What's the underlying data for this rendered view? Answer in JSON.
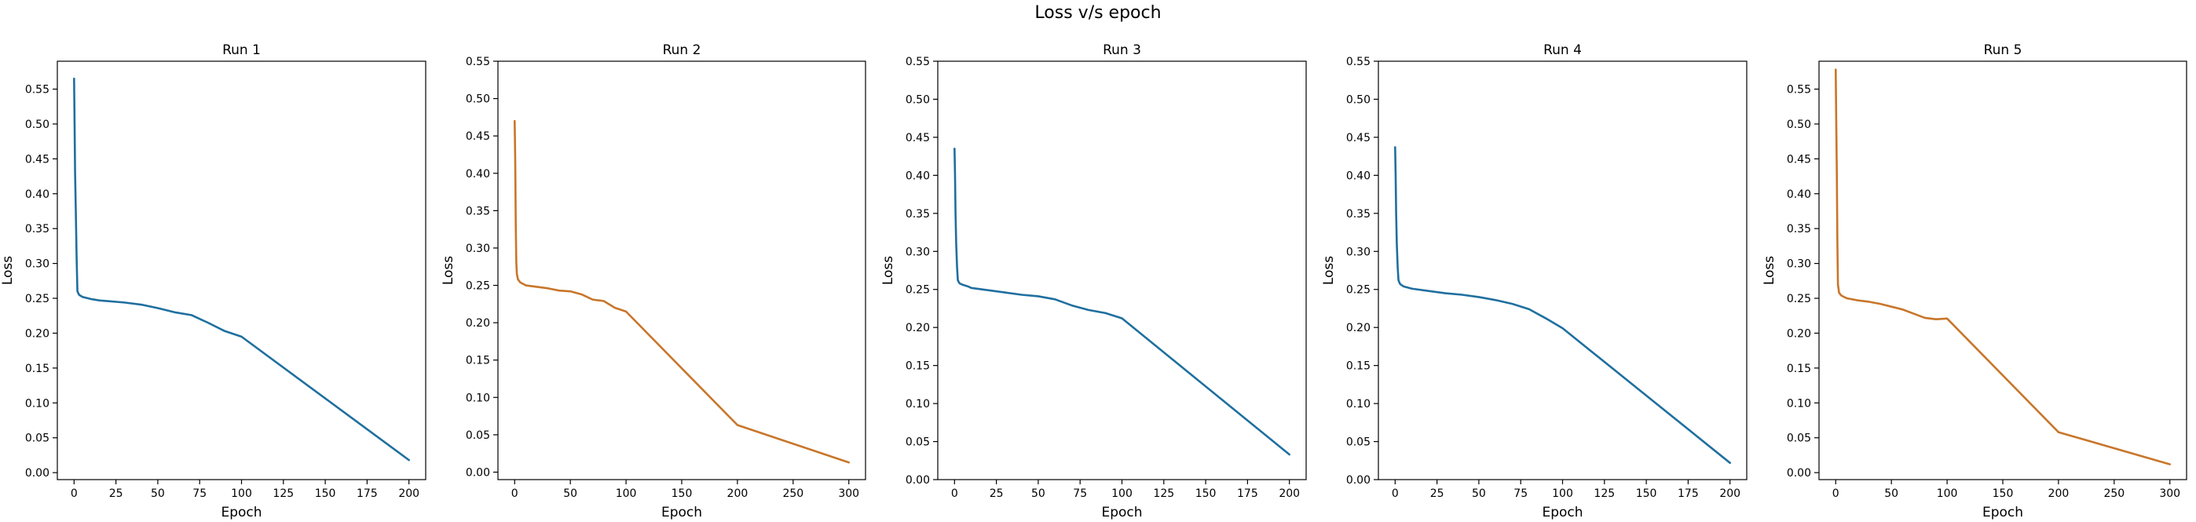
{
  "figure": {
    "title": "Loss v/s epoch"
  },
  "colors": {
    "blue": "#1f6f9f",
    "orange": "#c8762a"
  },
  "chart_data": [
    {
      "type": "line",
      "title": "Run 1",
      "xlabel": "Epoch",
      "ylabel": "Loss",
      "xlim": [
        -10,
        210
      ],
      "ylim": [
        -0.01,
        0.59
      ],
      "xticks": [
        0,
        25,
        50,
        75,
        100,
        125,
        150,
        175,
        200
      ],
      "yticks": [
        0.0,
        0.05,
        0.1,
        0.15,
        0.2,
        0.25,
        0.3,
        0.35,
        0.4,
        0.45,
        0.5,
        0.55
      ],
      "ytick_labels": [
        "0.00",
        "0.05",
        "0.10",
        "0.15",
        "0.20",
        "0.25",
        "0.30",
        "0.35",
        "0.40",
        "0.45",
        "0.50",
        "0.55"
      ],
      "grid": false,
      "color": "#1f6f9f",
      "x": [
        0,
        0.3,
        0.6,
        1,
        1.5,
        2,
        3,
        5,
        10,
        15,
        20,
        30,
        40,
        50,
        60,
        70,
        80,
        90,
        100,
        200
      ],
      "y": [
        0.565,
        0.5,
        0.43,
        0.38,
        0.31,
        0.26,
        0.255,
        0.252,
        0.249,
        0.247,
        0.246,
        0.244,
        0.241,
        0.236,
        0.23,
        0.226,
        0.215,
        0.203,
        0.195,
        0.018
      ]
    },
    {
      "type": "line",
      "title": "Run 2",
      "xlabel": "Epoch",
      "ylabel": "Loss",
      "xlim": [
        -15,
        315
      ],
      "ylim": [
        -0.01,
        0.55
      ],
      "xticks": [
        0,
        50,
        100,
        150,
        200,
        250,
        300
      ],
      "yticks": [
        0.0,
        0.05,
        0.1,
        0.15,
        0.2,
        0.25,
        0.3,
        0.35,
        0.4,
        0.45,
        0.5,
        0.55
      ],
      "ytick_labels": [
        "0.00",
        "0.05",
        "0.10",
        "0.15",
        "0.20",
        "0.25",
        "0.30",
        "0.35",
        "0.40",
        "0.45",
        "0.50",
        "0.55"
      ],
      "grid": false,
      "color": "#c8762a",
      "x": [
        0,
        0.5,
        1,
        1.5,
        2,
        3,
        5,
        10,
        20,
        30,
        40,
        50,
        60,
        70,
        80,
        90,
        100,
        200,
        300
      ],
      "y": [
        0.47,
        0.42,
        0.33,
        0.28,
        0.265,
        0.258,
        0.254,
        0.25,
        0.248,
        0.246,
        0.243,
        0.242,
        0.238,
        0.231,
        0.229,
        0.22,
        0.215,
        0.063,
        0.013
      ]
    },
    {
      "type": "line",
      "title": "Run 3",
      "xlabel": "Epoch",
      "ylabel": "Loss",
      "xlim": [
        -10,
        210
      ],
      "ylim": [
        0.0,
        0.55
      ],
      "xticks": [
        0,
        25,
        50,
        75,
        100,
        125,
        150,
        175,
        200
      ],
      "yticks": [
        0.0,
        0.05,
        0.1,
        0.15,
        0.2,
        0.25,
        0.3,
        0.35,
        0.4,
        0.45,
        0.5,
        0.55
      ],
      "ytick_labels": [
        "0.00",
        "0.05",
        "0.10",
        "0.15",
        "0.20",
        "0.25",
        "0.30",
        "0.35",
        "0.40",
        "0.45",
        "0.50",
        "0.55"
      ],
      "grid": false,
      "color": "#1f6f9f",
      "x": [
        0,
        0.3,
        0.6,
        1,
        1.5,
        2,
        3,
        5,
        8,
        10,
        20,
        30,
        40,
        50,
        60,
        70,
        80,
        90,
        100,
        200
      ],
      "y": [
        0.435,
        0.4,
        0.35,
        0.31,
        0.28,
        0.262,
        0.258,
        0.256,
        0.254,
        0.252,
        0.249,
        0.246,
        0.243,
        0.241,
        0.237,
        0.229,
        0.223,
        0.219,
        0.212,
        0.033
      ]
    },
    {
      "type": "line",
      "title": "Run 4",
      "xlabel": "Epoch",
      "ylabel": "Loss",
      "xlim": [
        -10,
        210
      ],
      "ylim": [
        0.0,
        0.55
      ],
      "xticks": [
        0,
        25,
        50,
        75,
        100,
        125,
        150,
        175,
        200
      ],
      "yticks": [
        0.0,
        0.05,
        0.1,
        0.15,
        0.2,
        0.25,
        0.3,
        0.35,
        0.4,
        0.45,
        0.5,
        0.55
      ],
      "ytick_labels": [
        "0.00",
        "0.05",
        "0.10",
        "0.15",
        "0.20",
        "0.25",
        "0.30",
        "0.35",
        "0.40",
        "0.45",
        "0.50",
        "0.55"
      ],
      "grid": false,
      "color": "#1f6f9f",
      "x": [
        0,
        0.3,
        0.6,
        1,
        1.5,
        2,
        3,
        5,
        10,
        20,
        30,
        40,
        50,
        60,
        70,
        80,
        90,
        100,
        200
      ],
      "y": [
        0.437,
        0.4,
        0.35,
        0.31,
        0.28,
        0.262,
        0.257,
        0.254,
        0.251,
        0.248,
        0.245,
        0.243,
        0.24,
        0.236,
        0.231,
        0.224,
        0.212,
        0.199,
        0.022
      ]
    },
    {
      "type": "line",
      "title": "Run 5",
      "xlabel": "Epoch",
      "ylabel": "Loss",
      "xlim": [
        -15,
        315
      ],
      "ylim": [
        -0.01,
        0.59
      ],
      "xticks": [
        0,
        50,
        100,
        150,
        200,
        250,
        300
      ],
      "yticks": [
        0.0,
        0.05,
        0.1,
        0.15,
        0.2,
        0.25,
        0.3,
        0.35,
        0.4,
        0.45,
        0.5,
        0.55
      ],
      "ytick_labels": [
        "0.00",
        "0.05",
        "0.10",
        "0.15",
        "0.20",
        "0.25",
        "0.30",
        "0.35",
        "0.40",
        "0.45",
        "0.50",
        "0.55"
      ],
      "grid": false,
      "color": "#c8762a",
      "x": [
        0,
        0.5,
        1,
        1.5,
        2,
        3,
        5,
        10,
        20,
        30,
        40,
        50,
        60,
        70,
        80,
        90,
        100,
        200,
        300
      ],
      "y": [
        0.578,
        0.5,
        0.43,
        0.33,
        0.27,
        0.258,
        0.254,
        0.25,
        0.247,
        0.245,
        0.242,
        0.238,
        0.234,
        0.228,
        0.222,
        0.22,
        0.221,
        0.058,
        0.012
      ]
    }
  ]
}
